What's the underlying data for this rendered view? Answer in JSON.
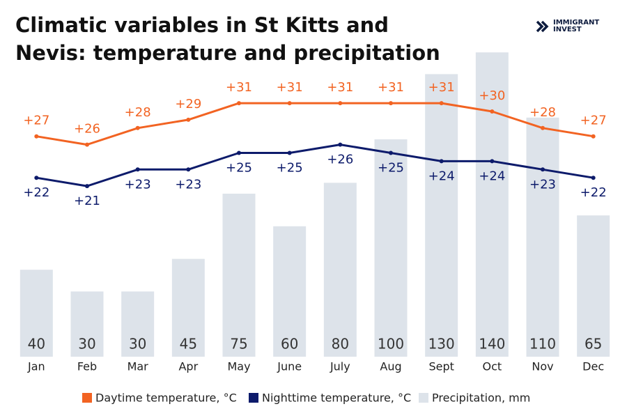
{
  "brand": [
    "IMMIGRANT",
    "INVEST"
  ],
  "chart_data": {
    "type": "bar",
    "title": "Climatic variables in St Kitts and Nevis: temperature and precipitation",
    "categories": [
      "Jan",
      "Feb",
      "Mar",
      "Apr",
      "May",
      "June",
      "July",
      "Aug",
      "Sept",
      "Oct",
      "Nov",
      "Dec"
    ],
    "series": [
      {
        "name": "Daytime temperature, °C",
        "type": "line",
        "color": "#f26322",
        "values": [
          27,
          26,
          28,
          29,
          31,
          31,
          31,
          31,
          31,
          30,
          28,
          27
        ],
        "value_labels": [
          "+27",
          "+26",
          "+28",
          "+29",
          "+31",
          "+31",
          "+31",
          "+31",
          "+31",
          "+30",
          "+28",
          "+27"
        ]
      },
      {
        "name": "Nighttime temperature, °C",
        "type": "line",
        "color": "#0d1b6b",
        "values": [
          22,
          21,
          23,
          23,
          25,
          25,
          26,
          25,
          24,
          24,
          23,
          22
        ],
        "value_labels": [
          "+22",
          "+21",
          "+23",
          "+23",
          "+25",
          "+25",
          "+26",
          "+25",
          "+24",
          "+24",
          "+23",
          "+22"
        ]
      },
      {
        "name": "Precipitation, mm",
        "type": "bar",
        "color": "#dde3ea",
        "values": [
          40,
          30,
          30,
          45,
          75,
          60,
          80,
          100,
          130,
          140,
          110,
          65
        ]
      }
    ]
  }
}
